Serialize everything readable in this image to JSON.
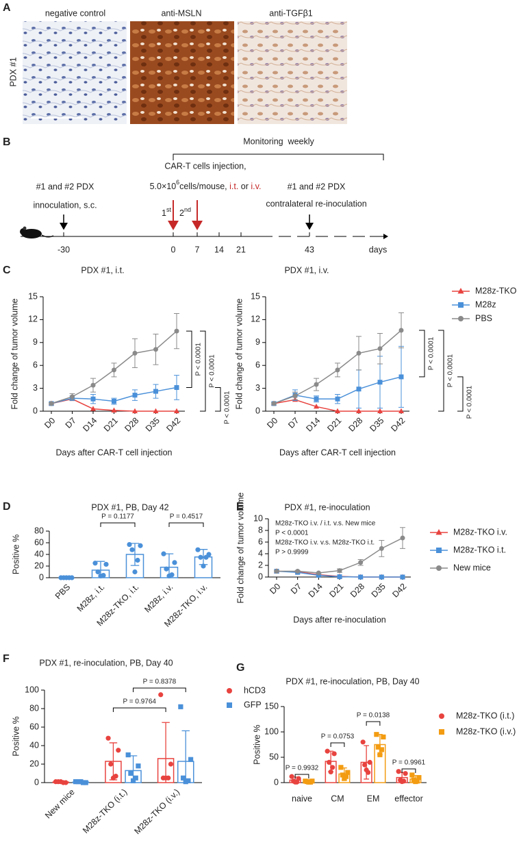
{
  "panel_labels": [
    "A",
    "B",
    "C",
    "D",
    "E",
    "F",
    "G"
  ],
  "panel_a": {
    "row_label": "PDX #1",
    "images": [
      "negative control",
      "anti-MSLN",
      "anti-TGFβ1"
    ]
  },
  "panel_b": {
    "monitoring": "Monitoring  weekly",
    "injection_title": "CAR-T cells injection,",
    "injection_dose": [
      "5.0×10",
      "6",
      "cells/mouse, ",
      "i.t.",
      " or ",
      "i.v."
    ],
    "inoculation": [
      "#1 and #2 PDX",
      "innoculation, s.c."
    ],
    "reinoculation": [
      "#1 and #2 PDX",
      "contralateral re-inoculation"
    ],
    "doses": [
      [
        "1",
        "st"
      ],
      [
        "2",
        "nd"
      ]
    ],
    "timeline": [
      "-30",
      "0",
      "7",
      "14",
      "21",
      "43"
    ],
    "unit": "days"
  },
  "chart_data": [
    {
      "type": "line",
      "title": "PDX #1, i.t.",
      "x_label": "Days after CAR-T cell injection",
      "y_label": "Fold change of tumor volume",
      "categories": [
        "D0",
        "D7",
        "D14",
        "D21",
        "D28",
        "D35",
        "D42"
      ],
      "ylim": [
        0,
        15
      ],
      "yticks": [
        0,
        3,
        6,
        9,
        12,
        15
      ],
      "series": [
        {
          "color": "#e8433f",
          "marker": "triangle",
          "values": [
            1,
            1.6,
            0.3,
            0.1,
            0,
            0,
            0
          ]
        },
        {
          "color": "#4a90d9",
          "marker": "square",
          "values": [
            1,
            1.7,
            1.6,
            1.3,
            2.1,
            2.6,
            3.1
          ],
          "errors": [
            0.1,
            0.3,
            0.6,
            0.4,
            0.7,
            0.9,
            1.6
          ]
        },
        {
          "color": "#8a8a8a",
          "marker": "circle",
          "values": [
            1,
            1.9,
            3.4,
            5.4,
            7.6,
            8.1,
            10.5
          ],
          "errors": [
            0.1,
            0.4,
            0.9,
            0.9,
            1.9,
            2.0,
            2.3
          ]
        }
      ],
      "annotations": [
        "P < 0.0001",
        "P < 0.0001",
        "P < 0.0001"
      ]
    },
    {
      "type": "line",
      "title": "PDX #1, i.v.",
      "x_label": "Days after CAR-T cell injection",
      "y_label": "Fold change of tumor volume",
      "categories": [
        "D0",
        "D7",
        "D14",
        "D21",
        "D28",
        "D35",
        "D42"
      ],
      "ylim": [
        0,
        15
      ],
      "yticks": [
        0,
        3,
        6,
        9,
        12,
        15
      ],
      "legend": "right",
      "series": [
        {
          "name": "M28z-TKO",
          "color": "#e8433f",
          "marker": "triangle",
          "values": [
            1,
            1.5,
            0.6,
            0,
            0,
            0,
            0
          ]
        },
        {
          "name": "M28z",
          "color": "#4a90d9",
          "marker": "square",
          "values": [
            1,
            2.1,
            1.6,
            1.6,
            2.9,
            3.8,
            4.5
          ],
          "errors": [
            0.1,
            0.7,
            0.4,
            0.6,
            2.5,
            3.4,
            4.0
          ]
        },
        {
          "name": "PBS",
          "color": "#8a8a8a",
          "marker": "circle",
          "values": [
            1,
            2.0,
            3.5,
            5.4,
            7.6,
            8.2,
            10.6
          ],
          "errors": [
            0.1,
            0.5,
            0.8,
            0.9,
            2.2,
            2.0,
            2.3
          ]
        }
      ],
      "annotations": [
        "P < 0.0001",
        "P < 0.0001",
        "P < 0.0001"
      ]
    },
    {
      "type": "dot-bar",
      "title": "PDX #1, PB, Day 42",
      "y_label": "Positive %",
      "categories": [
        "PBS",
        "M28z, i.t.",
        "M28z-TKO, i.t.",
        "M28z, i.v.",
        "M28z-TKO, i.v."
      ],
      "ylim": [
        0,
        80
      ],
      "yticks": [
        0,
        20,
        40,
        60,
        80
      ],
      "color": "#4a90d9",
      "values": [
        0,
        13,
        40,
        18,
        35.6
      ],
      "errors": [
        0,
        15,
        19,
        23,
        13
      ],
      "points": [
        [
          0,
          0,
          0,
          0,
          0
        ],
        [
          25,
          23,
          10,
          4,
          3
        ],
        [
          57,
          55,
          48,
          30,
          10
        ],
        [
          41,
          26,
          15,
          5,
          3
        ],
        [
          48,
          40,
          35,
          35,
          20
        ]
      ],
      "annotations": [
        "P = 0.1177",
        "P = 0.4517"
      ]
    },
    {
      "type": "line",
      "title": "PDX #1, re-inoculation",
      "x_label": "Days after re-inoculation",
      "y_label": "Fold change of tumor volume",
      "categories": [
        "D0",
        "D7",
        "D14",
        "D21",
        "D28",
        "D35",
        "D42"
      ],
      "ylim": [
        0,
        10
      ],
      "yticks": [
        0,
        2,
        4,
        6,
        8,
        10
      ],
      "legend": "right",
      "series": [
        {
          "name": "M28z-TKO i.v.",
          "color": "#e8433f",
          "marker": "triangle",
          "values": [
            1,
            0.9,
            0.4,
            0.1,
            0,
            0,
            0
          ]
        },
        {
          "name": "M28z-TKO i.t.",
          "color": "#4a90d9",
          "marker": "square",
          "values": [
            1,
            0.8,
            0.3,
            0.05,
            0,
            0,
            0
          ]
        },
        {
          "name": "New mice",
          "color": "#8a8a8a",
          "marker": "circle",
          "values": [
            1,
            1.0,
            0.7,
            1.1,
            2.5,
            4.9,
            6.7
          ],
          "errors": [
            0.1,
            0.1,
            0.1,
            0.3,
            0.5,
            1.4,
            1.8
          ]
        }
      ],
      "notes": [
        "M28z-TKO i.v. / i.t. v.s. New mice",
        "P < 0.0001",
        "M28z-TKO i.v. v.s. M28z-TKO i.t.",
        "P > 0.9999"
      ]
    },
    {
      "type": "dot-bar",
      "title": "PDX #1, re-inoculation, PB, Day 40",
      "y_label": "Positive %",
      "categories": [
        "New mice",
        "M28z-TKO (i.t.)",
        "M28z-TKO (i.v.)"
      ],
      "ylim": [
        0,
        100
      ],
      "yticks": [
        0,
        20,
        40,
        60,
        80,
        100
      ],
      "legend": "right",
      "series": [
        {
          "name": "hCD3",
          "color": "#e8433f",
          "marker": "circle",
          "values": [
            0.6,
            23,
            26
          ],
          "errors": [
            0.5,
            20,
            39
          ],
          "points": [
            [
              1,
              0,
              1,
              0,
              1
            ],
            [
              48,
              35,
              20,
              7,
              5
            ],
            [
              95,
              20,
              5,
              5,
              5
            ]
          ]
        },
        {
          "name": "GFP",
          "color": "#4a90d9",
          "marker": "square",
          "values": [
            0.6,
            13,
            23
          ],
          "errors": [
            0.4,
            16,
            33
          ],
          "points": [
            [
              1,
              0,
              1,
              0,
              1
            ],
            [
              30,
              18,
              10,
              5,
              2
            ],
            [
              82,
              25,
              5,
              2,
              1
            ]
          ]
        }
      ],
      "annotations": [
        "P = 0.9764",
        "P = 0.8378"
      ]
    },
    {
      "type": "dot-bar",
      "title": "PDX #1, re-inoculation, PB, Day 40",
      "y_label": "Positive %",
      "categories": [
        "naive",
        "CM",
        "EM",
        "effector"
      ],
      "ylim": [
        0,
        150
      ],
      "yticks": [
        0,
        50,
        100,
        150
      ],
      "legend": "right",
      "series": [
        {
          "name": "M28z-TKO (i.t.)",
          "color": "#e8433f",
          "marker": "circle",
          "values": [
            5,
            42,
            40,
            10
          ],
          "errors": [
            6,
            20,
            33,
            10
          ],
          "points": [
            [
              12,
              8,
              3,
              1,
              1
            ],
            [
              62,
              57,
              40,
              30,
              21
            ],
            [
              80,
              40,
              35,
              20,
              25
            ],
            [
              22,
              18,
              5,
              3,
              2
            ]
          ]
        },
        {
          "name": "M28z-TKO (i.v.)",
          "color": "#f39c12",
          "marker": "square",
          "values": [
            2,
            17,
            75,
            7
          ],
          "errors": [
            2,
            12,
            20,
            7
          ],
          "points": [
            [
              3,
              3,
              2,
              1,
              1
            ],
            [
              30,
              20,
              15,
              12,
              8
            ],
            [
              95,
              90,
              70,
              65,
              55
            ],
            [
              15,
              10,
              5,
              3,
              2
            ]
          ]
        }
      ],
      "annotations": [
        "P = 0.9932",
        "P = 0.0753",
        "P = 0.0138",
        "P = 0.9961"
      ]
    }
  ]
}
